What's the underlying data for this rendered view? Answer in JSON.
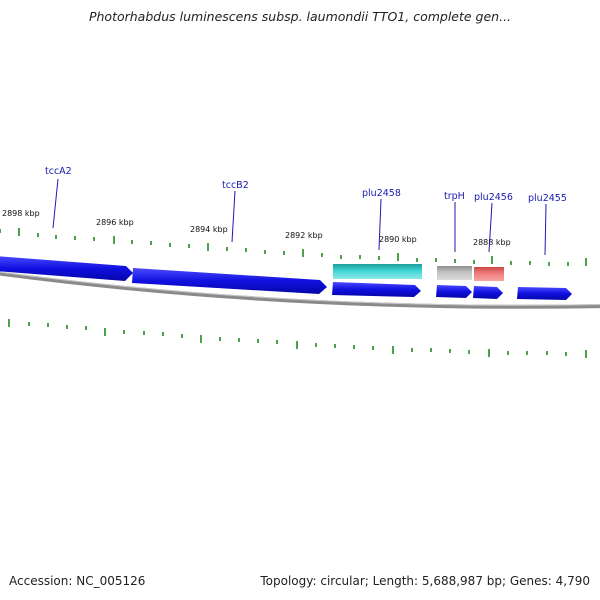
{
  "header": {
    "title": "Photorhabdus luminescens subsp. laumondii TTO1, complete gen..."
  },
  "footer": {
    "accession": "Accession: NC_005126",
    "summary": "Topology: circular; Length: 5,688,987 bp; Genes: 4,790"
  },
  "map": {
    "kbp_labels": [
      {
        "id": "2898",
        "text": "2898 kbp"
      },
      {
        "id": "2896",
        "text": "2896 kbp"
      },
      {
        "id": "2894",
        "text": "2894 kbp"
      },
      {
        "id": "2892",
        "text": "2892 kbp"
      },
      {
        "id": "2890",
        "text": "2890 kbp"
      },
      {
        "id": "2888",
        "text": "2888 kbp"
      }
    ],
    "gene_labels": [
      {
        "id": "tccA2",
        "text": "tccA2"
      },
      {
        "id": "tccB2",
        "text": "tccB2"
      },
      {
        "id": "plu2458",
        "text": "plu2458"
      },
      {
        "id": "trpH",
        "text": "trpH"
      },
      {
        "id": "plu2456",
        "text": "plu2456"
      },
      {
        "id": "plu2455",
        "text": "plu2455"
      }
    ],
    "colors": {
      "cds": "#1111dd",
      "cyan_feature": "#2ec8c8",
      "gray_feature": "#b8b8b8",
      "red_feature": "#ee7070",
      "backbone": "#8a8a8a",
      "tick": "#1f8a1f",
      "label_line": "#1a1ab0"
    }
  }
}
